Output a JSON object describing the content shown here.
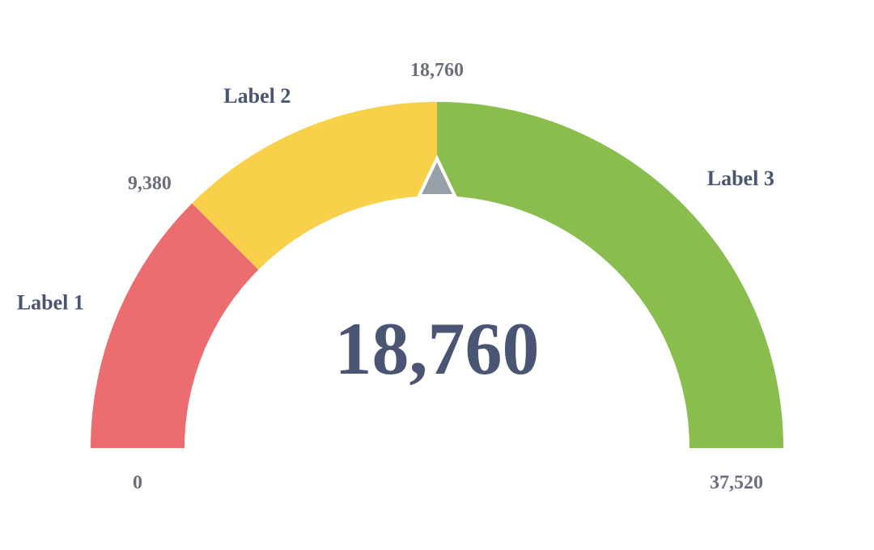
{
  "chart_data": {
    "type": "gauge",
    "min": 0,
    "max": 37520,
    "value": 18760,
    "value_label": "18,760",
    "bands": [
      {
        "label": "Label 1",
        "from": 0,
        "to": 9380,
        "color": "#ec6d6f"
      },
      {
        "label": "Label 2",
        "from": 9380,
        "to": 18760,
        "color": "#f8d04a"
      },
      {
        "label": "Label 3",
        "from": 18760,
        "to": 37520,
        "color": "#89bd4e"
      }
    ],
    "ticks": [
      {
        "value": 0,
        "label": "0"
      },
      {
        "value": 9380,
        "label": "9,380"
      },
      {
        "value": 18760,
        "label": "18,760"
      },
      {
        "value": 37520,
        "label": "37,520"
      }
    ],
    "pointer_color": "#96a0a9"
  }
}
